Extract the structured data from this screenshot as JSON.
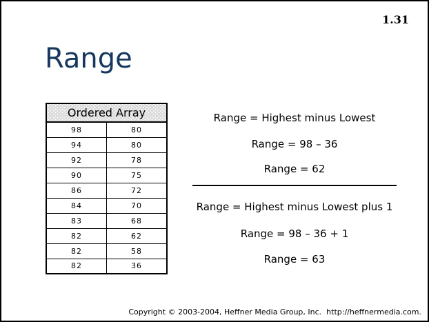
{
  "slide": {
    "number": "1.31",
    "title": "Range",
    "footer": "Copyright © 2003-2004, Heffner Media Group, Inc.  http://heffnermedia.com."
  },
  "ordered_array": {
    "header": "Ordered Array",
    "rows": [
      [
        "98",
        "80"
      ],
      [
        "94",
        "80"
      ],
      [
        "92",
        "78"
      ],
      [
        "90",
        "75"
      ],
      [
        "86",
        "72"
      ],
      [
        "84",
        "70"
      ],
      [
        "83",
        "68"
      ],
      [
        "82",
        "62"
      ],
      [
        "82",
        "58"
      ],
      [
        "82",
        "36"
      ]
    ]
  },
  "range_simple": {
    "formula": "Range = Highest minus Lowest",
    "substitution": "Range = 98 – 36",
    "result": "Range = 62"
  },
  "range_plus_one": {
    "formula": "Range = Highest minus Lowest plus 1",
    "substitution": "Range = 98 – 36 + 1",
    "result": "Range = 63"
  },
  "colors": {
    "title": "#17375E",
    "text": "#000000",
    "table_header_bg": "#D9D9D9"
  }
}
